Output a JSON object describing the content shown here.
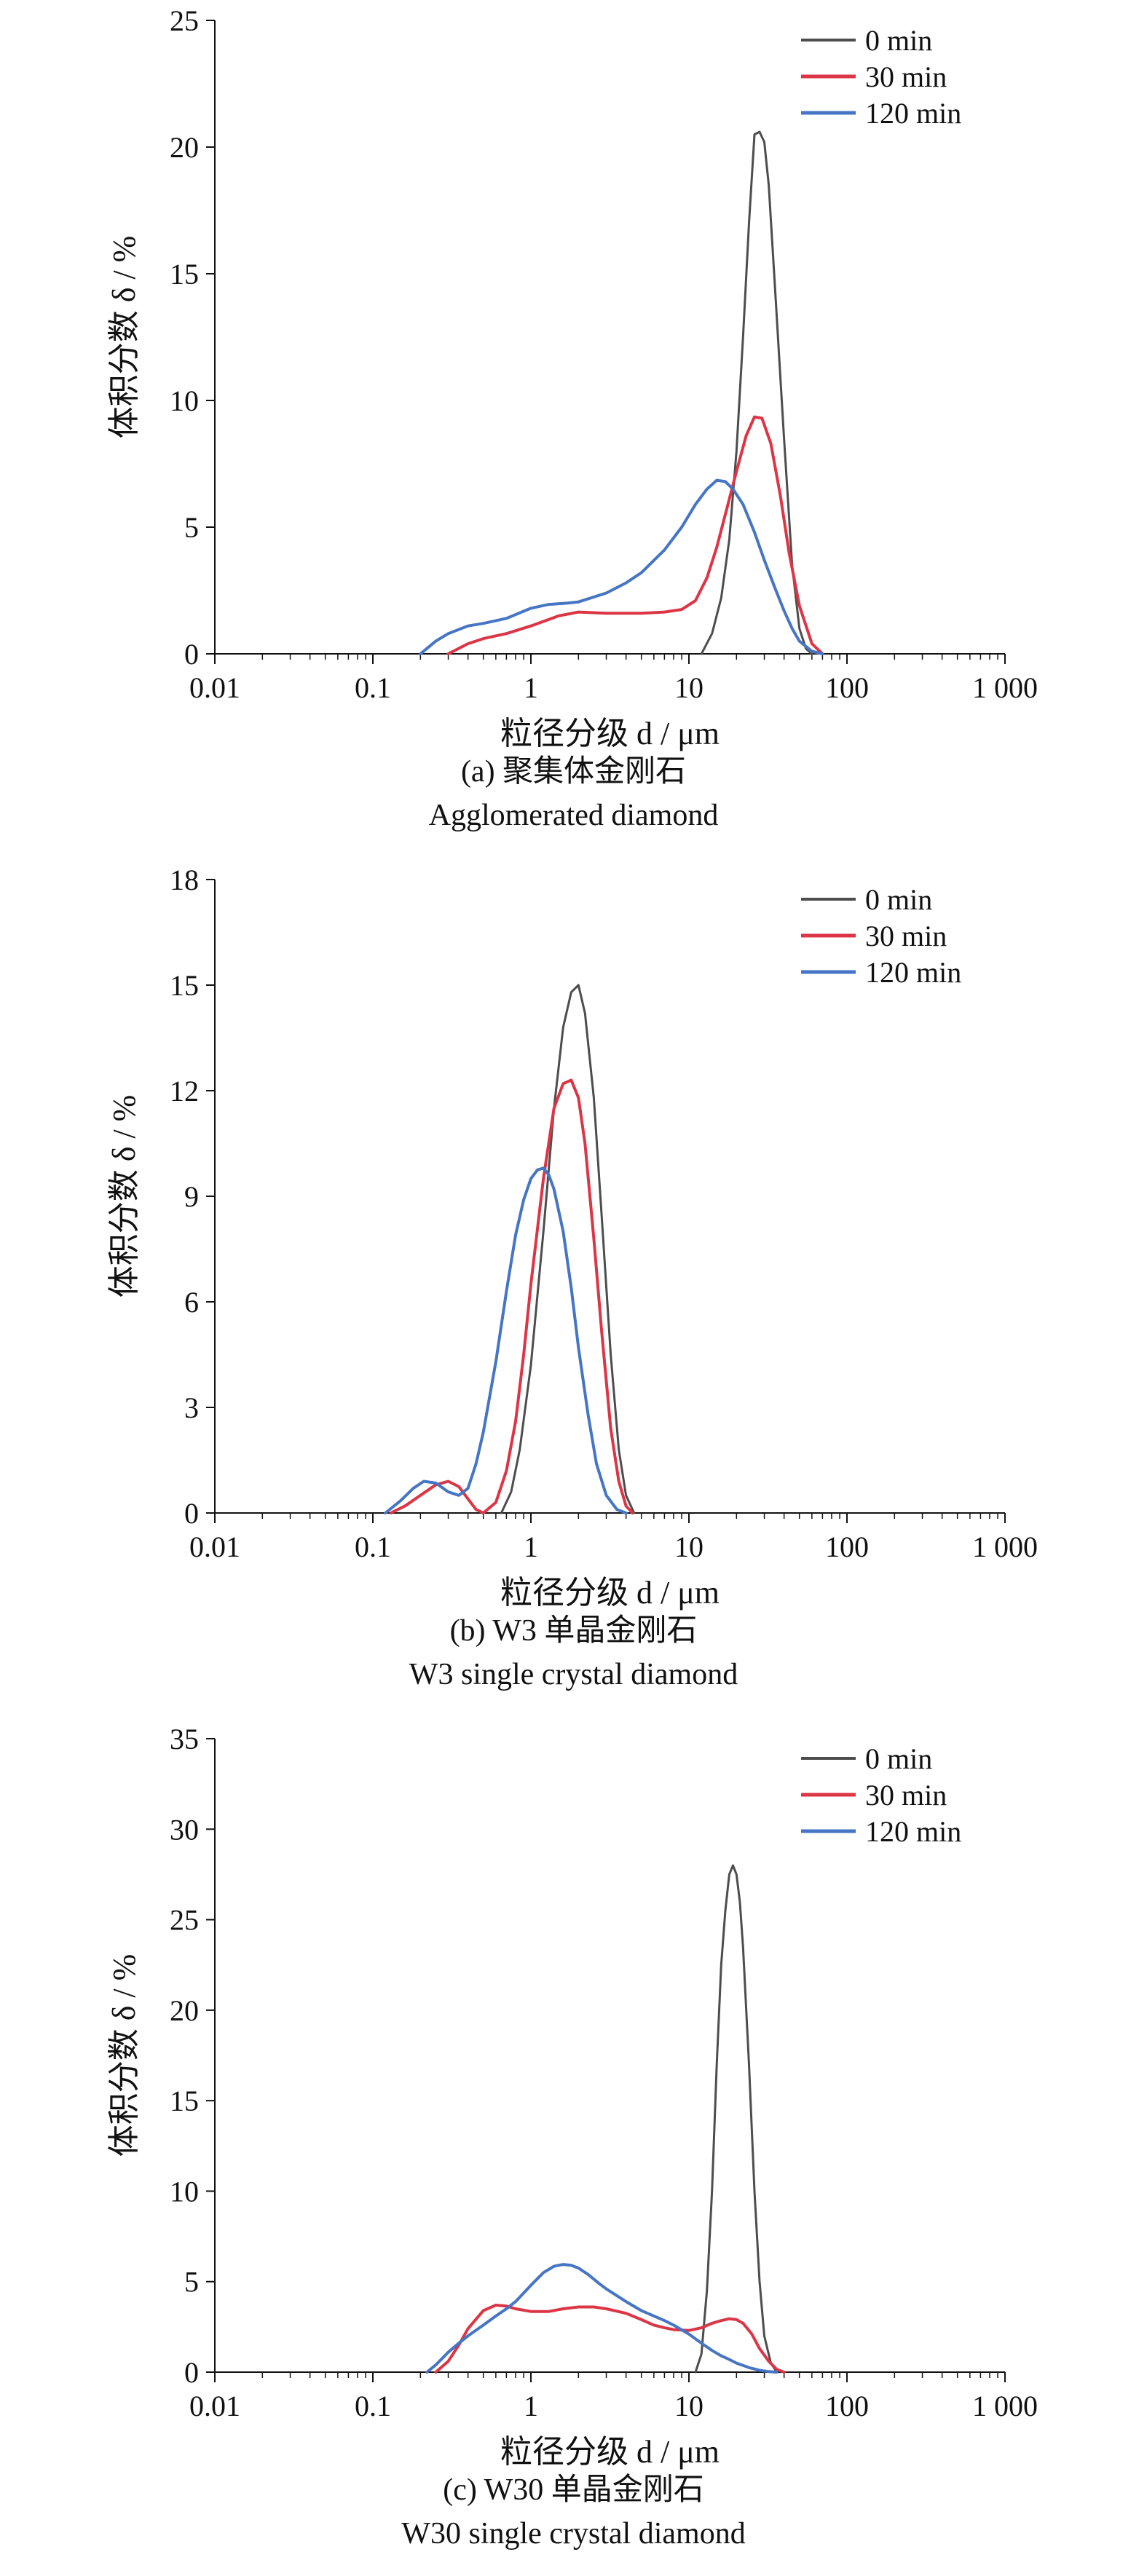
{
  "chart_data": [
    {
      "type": "line",
      "xscale": "log",
      "xlim": [
        0.01,
        1000
      ],
      "xticks": [
        0.01,
        0.1,
        1,
        10,
        100,
        1000
      ],
      "xtick_labels": [
        "0.01",
        "0.1",
        "1",
        "10",
        "100",
        "1 000"
      ],
      "ylim": [
        0,
        25
      ],
      "yticks": [
        0,
        5,
        10,
        15,
        20,
        25
      ],
      "xlabel": "粒径分级 d / μm",
      "ylabel": "体积分数 δ / %",
      "legend": "top-right",
      "caption_cn": "(a) 聚集体金刚石",
      "caption_en": "Agglomerated diamond",
      "series": [
        {
          "name": "0 min",
          "color": "#4d4d4d",
          "width": 3,
          "x": [
            12,
            14,
            16,
            18,
            20,
            22,
            24,
            26,
            28,
            30,
            32,
            35,
            40,
            45,
            50,
            55,
            60
          ],
          "y": [
            0,
            0.8,
            2.2,
            4.5,
            8,
            12.5,
            17,
            20.5,
            20.6,
            20.2,
            18.5,
            14.5,
            8.5,
            3.5,
            1.0,
            0.2,
            0
          ]
        },
        {
          "name": "30 min",
          "color": "#dc3545",
          "width": 4,
          "x": [
            0.3,
            0.4,
            0.5,
            0.7,
            1,
            1.5,
            2,
            3,
            5,
            7,
            9,
            11,
            13,
            15,
            18,
            20,
            23,
            26,
            29,
            33,
            38,
            43,
            50,
            60,
            70
          ],
          "y": [
            0,
            0.4,
            0.6,
            0.8,
            1.1,
            1.5,
            1.65,
            1.6,
            1.6,
            1.65,
            1.75,
            2.1,
            3.0,
            4.2,
            6.1,
            7.2,
            8.6,
            9.35,
            9.3,
            8.3,
            6.2,
            4.0,
            1.9,
            0.4,
            0
          ]
        },
        {
          "name": "120 min",
          "color": "#4575c4",
          "width": 4,
          "x": [
            0.2,
            0.25,
            0.3,
            0.4,
            0.5,
            0.7,
            1,
            1.3,
            1.7,
            2,
            3,
            4,
            5,
            7,
            9,
            11,
            13,
            15,
            17,
            19,
            22,
            26,
            30,
            35,
            40,
            45,
            50,
            60,
            70
          ],
          "y": [
            0,
            0.5,
            0.8,
            1.1,
            1.2,
            1.4,
            1.8,
            1.95,
            2.0,
            2.05,
            2.4,
            2.8,
            3.2,
            4.1,
            5.0,
            5.9,
            6.5,
            6.85,
            6.8,
            6.5,
            5.9,
            4.8,
            3.7,
            2.6,
            1.7,
            1.0,
            0.5,
            0.1,
            0
          ]
        }
      ]
    },
    {
      "type": "line",
      "xscale": "log",
      "xlim": [
        0.01,
        1000
      ],
      "xticks": [
        0.01,
        0.1,
        1,
        10,
        100,
        1000
      ],
      "xtick_labels": [
        "0.01",
        "0.1",
        "1",
        "10",
        "100",
        "1 000"
      ],
      "ylim": [
        0,
        18
      ],
      "yticks": [
        0,
        3,
        6,
        9,
        12,
        15,
        18
      ],
      "xlabel": "粒径分级 d / μm",
      "ylabel": "体积分数 δ / %",
      "legend": "top-right",
      "caption_cn": "(b) W3 单晶金刚石",
      "caption_en": "W3 single crystal diamond",
      "series": [
        {
          "name": "0 min",
          "color": "#4d4d4d",
          "width": 3,
          "x": [
            0.65,
            0.75,
            0.85,
            1.0,
            1.2,
            1.4,
            1.6,
            1.8,
            2.0,
            2.2,
            2.5,
            2.8,
            3.2,
            3.6,
            4.0,
            4.5
          ],
          "y": [
            0,
            0.6,
            1.8,
            4.2,
            8.0,
            11.5,
            13.8,
            14.8,
            15.0,
            14.2,
            11.8,
            8.5,
            4.5,
            1.8,
            0.5,
            0
          ]
        },
        {
          "name": "30 min",
          "color": "#dc3545",
          "width": 4,
          "x": [
            0.13,
            0.16,
            0.2,
            0.25,
            0.3,
            0.35,
            0.4,
            0.45,
            0.5,
            0.6,
            0.7,
            0.8,
            0.9,
            1.0,
            1.2,
            1.4,
            1.6,
            1.8,
            2.0,
            2.2,
            2.5,
            2.8,
            3.2,
            3.6,
            4.0,
            4.4
          ],
          "y": [
            0,
            0.2,
            0.5,
            0.8,
            0.9,
            0.75,
            0.4,
            0.1,
            0,
            0.3,
            1.2,
            2.6,
            4.5,
            6.5,
            9.5,
            11.5,
            12.2,
            12.3,
            11.8,
            10.5,
            7.8,
            5.2,
            2.4,
            0.9,
            0.2,
            0
          ]
        },
        {
          "name": "120 min",
          "color": "#4575c4",
          "width": 4,
          "x": [
            0.12,
            0.15,
            0.18,
            0.21,
            0.25,
            0.3,
            0.35,
            0.4,
            0.45,
            0.5,
            0.6,
            0.7,
            0.8,
            0.9,
            1.0,
            1.1,
            1.2,
            1.3,
            1.4,
            1.6,
            1.8,
            2.0,
            2.3,
            2.6,
            3.0,
            3.5,
            4.0
          ],
          "y": [
            0,
            0.35,
            0.7,
            0.9,
            0.85,
            0.6,
            0.5,
            0.7,
            1.4,
            2.3,
            4.3,
            6.3,
            7.9,
            8.9,
            9.5,
            9.75,
            9.8,
            9.6,
            9.2,
            8.0,
            6.4,
            4.7,
            2.8,
            1.4,
            0.5,
            0.1,
            0
          ]
        }
      ]
    },
    {
      "type": "line",
      "xscale": "log",
      "xlim": [
        0.01,
        1000
      ],
      "xticks": [
        0.01,
        0.1,
        1,
        10,
        100,
        1000
      ],
      "xtick_labels": [
        "0.01",
        "0.1",
        "1",
        "10",
        "100",
        "1 000"
      ],
      "ylim": [
        0,
        35
      ],
      "yticks": [
        0,
        5,
        10,
        15,
        20,
        25,
        30,
        35
      ],
      "xlabel": "粒径分级 d / μm",
      "ylabel": "体积分数 δ / %",
      "legend": "top-right",
      "caption_cn": "(c) W30 单晶金刚石",
      "caption_en": "W30 single crystal diamond",
      "series": [
        {
          "name": "0 min",
          "color": "#4d4d4d",
          "width": 3,
          "x": [
            11,
            12,
            13,
            14,
            15,
            16,
            17,
            18,
            19,
            20,
            21,
            22,
            24,
            26,
            28,
            30,
            33,
            36
          ],
          "y": [
            0,
            1.0,
            4.5,
            10,
            17,
            22.5,
            25.5,
            27.5,
            28.0,
            27.5,
            26.0,
            23.5,
            17,
            10,
            5,
            2.0,
            0.5,
            0
          ]
        },
        {
          "name": "30 min",
          "color": "#dc3545",
          "width": 4,
          "x": [
            0.25,
            0.3,
            0.35,
            0.4,
            0.5,
            0.6,
            0.7,
            0.8,
            1.0,
            1.3,
            1.6,
            2.0,
            2.5,
            3.0,
            4,
            5,
            6,
            7,
            8,
            10,
            12,
            14,
            16,
            18,
            20,
            22,
            25,
            28,
            32,
            36,
            40
          ],
          "y": [
            0,
            0.6,
            1.5,
            2.4,
            3.4,
            3.7,
            3.65,
            3.5,
            3.35,
            3.35,
            3.5,
            3.6,
            3.6,
            3.5,
            3.25,
            2.9,
            2.6,
            2.45,
            2.35,
            2.3,
            2.45,
            2.7,
            2.85,
            2.95,
            2.9,
            2.7,
            2.1,
            1.3,
            0.6,
            0.15,
            0
          ]
        },
        {
          "name": "120 min",
          "color": "#4575c4",
          "width": 4,
          "x": [
            0.22,
            0.25,
            0.3,
            0.35,
            0.4,
            0.5,
            0.6,
            0.7,
            0.8,
            1.0,
            1.2,
            1.4,
            1.6,
            1.8,
            2.0,
            2.3,
            2.7,
            3.0,
            4,
            5,
            6,
            7,
            8,
            10,
            12,
            14,
            16,
            18,
            20,
            24,
            28,
            32,
            36
          ],
          "y": [
            0,
            0.4,
            1.1,
            1.6,
            2.0,
            2.6,
            3.1,
            3.5,
            3.9,
            4.8,
            5.5,
            5.85,
            5.95,
            5.9,
            5.75,
            5.4,
            4.9,
            4.6,
            3.9,
            3.4,
            3.1,
            2.85,
            2.6,
            2.1,
            1.6,
            1.2,
            0.9,
            0.7,
            0.5,
            0.25,
            0.1,
            0.03,
            0
          ]
        }
      ]
    }
  ]
}
